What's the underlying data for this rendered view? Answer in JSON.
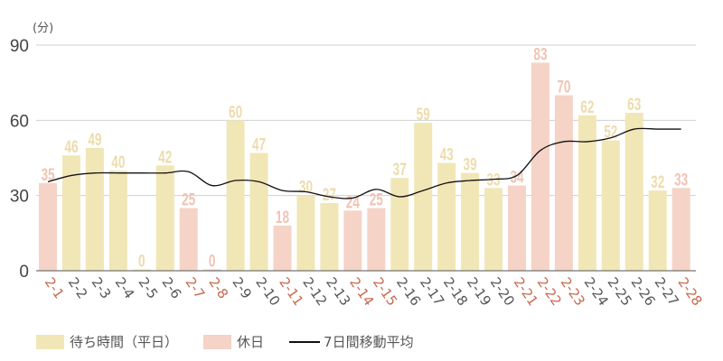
{
  "chart_data": {
    "type": "bar",
    "title": "",
    "ylabel": "(分)",
    "xlabel": "",
    "ylim": [
      0,
      90
    ],
    "yticks": [
      0,
      30,
      60,
      90
    ],
    "grid": true,
    "legend_position": "bottom",
    "categories": [
      "2-1",
      "2-2",
      "2-3",
      "2-4",
      "2-5",
      "2-6",
      "2-7",
      "2-8",
      "2-9",
      "2-10",
      "2-11",
      "2-12",
      "2-13",
      "2-14",
      "2-15",
      "2-16",
      "2-17",
      "2-18",
      "2-19",
      "2-20",
      "2-21",
      "2-22",
      "2-23",
      "2-24",
      "2-25",
      "2-26",
      "2-27",
      "2-28"
    ],
    "values": [
      35,
      46,
      49,
      40,
      0,
      42,
      25,
      0,
      60,
      47,
      18,
      30,
      27,
      24,
      25,
      37,
      59,
      43,
      39,
      33,
      34,
      83,
      70,
      62,
      52,
      63,
      32,
      33
    ],
    "day_type": [
      "holiday",
      "weekday",
      "weekday",
      "weekday",
      "weekday",
      "weekday",
      "holiday",
      "holiday",
      "weekday",
      "weekday",
      "holiday",
      "weekday",
      "weekday",
      "holiday",
      "holiday",
      "weekday",
      "weekday",
      "weekday",
      "weekday",
      "weekday",
      "holiday",
      "holiday",
      "holiday",
      "weekday",
      "weekday",
      "weekday",
      "weekday",
      "holiday"
    ],
    "series": [
      {
        "name": "待ち時間（平日）",
        "type": "bar",
        "color": "#f1e6b6"
      },
      {
        "name": "休日",
        "type": "bar",
        "color": "#f5d3c7"
      },
      {
        "name": "7日間移動平均",
        "type": "line",
        "color": "#111111",
        "values": [
          35.5,
          38,
          39,
          39,
          39,
          39,
          39.5,
          34,
          36,
          35.5,
          32,
          31.5,
          29.5,
          29,
          32.5,
          29.5,
          32,
          35,
          36,
          36.5,
          38,
          48,
          51.5,
          51.5,
          53,
          56.5,
          56.5,
          56.5
        ]
      }
    ]
  },
  "colors": {
    "weekday_bar": "#f1e6b6",
    "holiday_bar": "#f5d3c7",
    "weekday_label": "#eddcab",
    "holiday_label": "#f0c4b4",
    "weekday_tick": "#555555",
    "holiday_tick": "#c8684f",
    "grid": "#d0d0d0",
    "axis": "#555555"
  },
  "legend": {
    "weekday": "待ち時間（平日）",
    "holiday": "休日",
    "moving_avg": "7日間移動平均"
  },
  "axis": {
    "unit_label": "(分)"
  }
}
